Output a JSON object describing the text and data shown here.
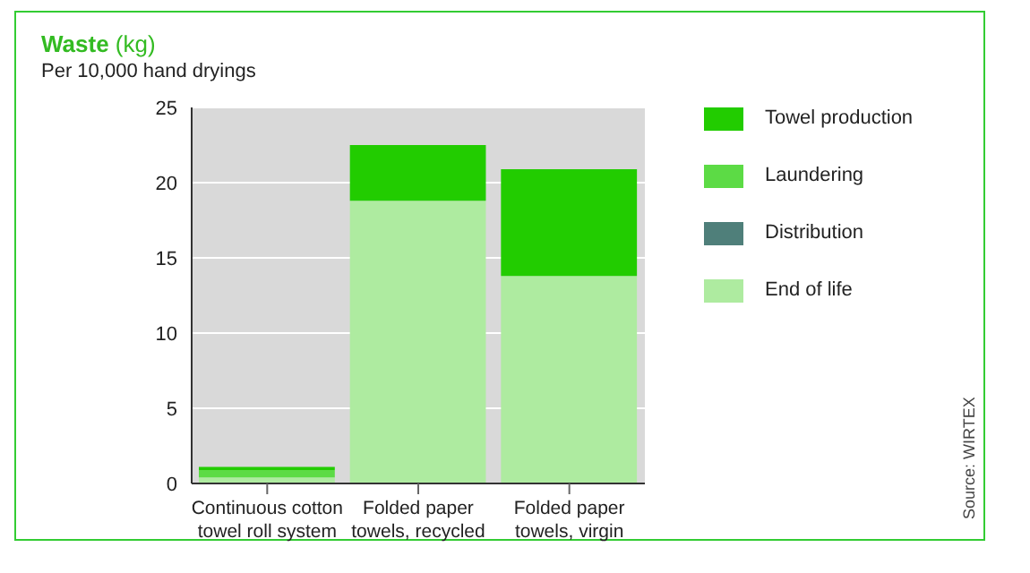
{
  "chart_data": {
    "type": "bar",
    "title": "Waste (kg)",
    "subtitle": "Per 10,000 hand dryings",
    "categories": [
      "Continuous cotton towel roll system",
      "Folded paper towels, recycled",
      "Folded paper towels, virgin"
    ],
    "series": [
      {
        "name": "End of life",
        "color": "#aeeba0",
        "values": [
          0.4,
          18.8,
          13.8
        ]
      },
      {
        "name": "Distribution",
        "color": "#4f7f7a",
        "values": [
          0,
          0,
          0
        ]
      },
      {
        "name": "Laundering",
        "color": "#5cdb45",
        "values": [
          0.5,
          0,
          0
        ]
      },
      {
        "name": "Towel production",
        "color": "#22cc00",
        "values": [
          0.2,
          3.7,
          7.1
        ]
      }
    ],
    "stacked": true,
    "ylim": [
      0,
      25
    ],
    "yticks": [
      0,
      5,
      10,
      15,
      20,
      25
    ],
    "grid": "y",
    "legend": "right",
    "annotations": [
      "Source: WIRTEX"
    ]
  }
}
